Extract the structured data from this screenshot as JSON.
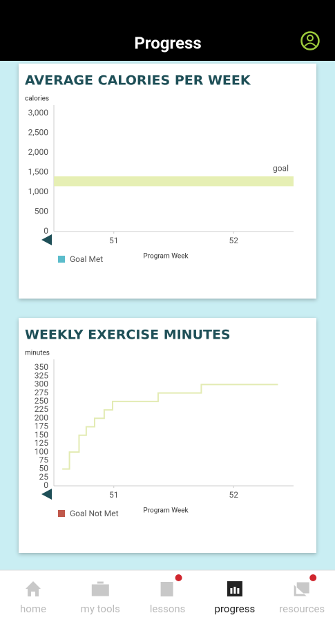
{
  "header": {
    "title": "Progress"
  },
  "chart_data": [
    {
      "type": "band",
      "title": "AVERAGE CALORIES PER WEEK",
      "y_label": "calories",
      "x_label": "Program Week",
      "ylim": [
        0,
        3000
      ],
      "yticks": [
        0,
        500,
        {
          "value": 1000,
          "label": "1,000"
        },
        {
          "value": 1500,
          "label": "1,500"
        },
        {
          "value": 2000,
          "label": "2,000"
        },
        {
          "value": 2500,
          "label": "2,500"
        },
        {
          "value": 3000,
          "label": "3,000"
        }
      ],
      "xlim": [
        50.5,
        52.5
      ],
      "xticks": [
        51,
        52
      ],
      "goal_band": [
        1150,
        1400
      ],
      "goal_label": "goal",
      "band_color": "#e6efb4",
      "legend": [
        {
          "name": "Goal Met",
          "color": "#5bbccb"
        }
      ]
    },
    {
      "type": "line",
      "title": "WEEKLY EXERCISE MINUTES",
      "y_label": "minutes",
      "x_label": "Program Week",
      "ylim": [
        0,
        350
      ],
      "yticks": [
        0,
        25,
        50,
        75,
        100,
        125,
        150,
        175,
        200,
        225,
        250,
        275,
        300,
        325,
        350
      ],
      "xlim": [
        50.5,
        52.5
      ],
      "xticks": [
        51,
        52
      ],
      "series": [
        {
          "color": "#e3ebb3",
          "x": [
            50.57,
            50.63,
            50.63,
            50.71,
            50.71,
            50.77,
            50.77,
            50.84,
            50.84,
            50.92,
            50.92,
            50.99,
            50.99,
            51.37,
            51.37,
            51.73,
            51.73,
            52.37
          ],
          "values": [
            50,
            50,
            100,
            100,
            150,
            150,
            175,
            175,
            200,
            200,
            225,
            225,
            250,
            250,
            275,
            275,
            300,
            300
          ]
        }
      ],
      "legend": [
        {
          "name": "Goal Not Met",
          "color": "#c0584b"
        }
      ]
    }
  ],
  "nav": {
    "items": [
      "home",
      "my tools",
      "lessons",
      "progress",
      "resources"
    ],
    "active": 3
  }
}
